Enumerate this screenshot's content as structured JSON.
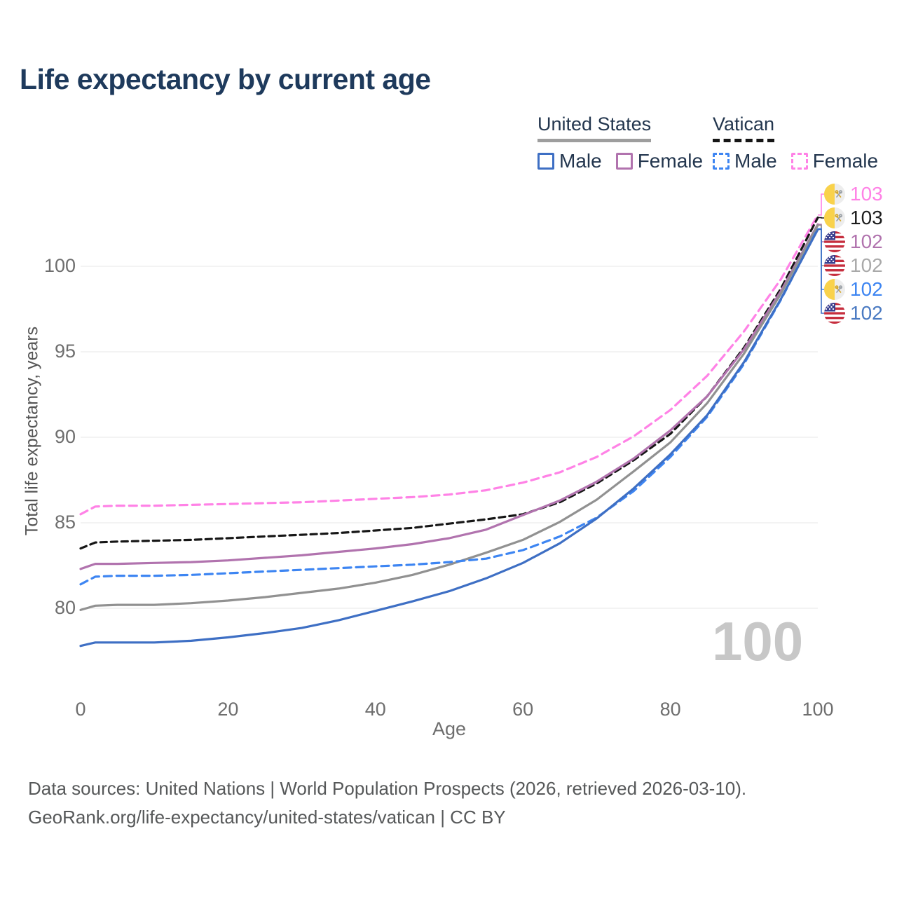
{
  "title": "Life expectancy by current age",
  "watermark": "100",
  "legend": {
    "groups": [
      {
        "name": "United States",
        "items": [
          {
            "label": "Male"
          },
          {
            "label": "Female"
          }
        ]
      },
      {
        "name": "Vatican",
        "items": [
          {
            "label": "Male"
          },
          {
            "label": "Female"
          }
        ]
      }
    ]
  },
  "footer": {
    "line1": "Data sources: United Nations | World Population Prospects (2026, retrieved 2026-03-10).",
    "line2": "GeoRank.org/life-expectancy/united-states/vatican | CC BY"
  },
  "colors": {
    "us_male": "#3e6fc4",
    "us_female": "#b173ae",
    "us_total": "#919191",
    "vatican_male": "#3d85f2",
    "vatican_total": "#161616",
    "vatican_female": "#ff82e6",
    "title_navy": "#1e3a5c",
    "gridline": "#ececec",
    "us_header_underline": "#9e9e9e",
    "vatican_header_underline": "#161616"
  },
  "chart_data": {
    "type": "line",
    "title": "Life expectancy by current age",
    "xlabel": "Age",
    "ylabel": "Total life expectancy, years",
    "xlim": [
      0,
      100
    ],
    "ylim": [
      76,
      104
    ],
    "x_ticks": [
      0,
      20,
      40,
      60,
      80,
      100
    ],
    "y_ticks": [
      80,
      85,
      90,
      95,
      100
    ],
    "grid": "horizontal-only",
    "legend_position": "top-right",
    "ages": [
      0,
      2,
      5,
      10,
      15,
      20,
      25,
      30,
      35,
      40,
      45,
      50,
      55,
      60,
      65,
      70,
      75,
      80,
      85,
      90,
      95,
      100
    ],
    "series": [
      {
        "id": "vatican-female",
        "name": "Vatican Female",
        "country": "Vatican",
        "sex": "Female",
        "color": "#ff82e6",
        "dashed": true,
        "end_label": "103",
        "end_label_color": "#ff82e6",
        "flag": "vatican",
        "values": [
          85.5,
          85.95,
          86.0,
          86.0,
          86.05,
          86.1,
          86.15,
          86.2,
          86.3,
          86.4,
          86.5,
          86.65,
          86.9,
          87.35,
          87.95,
          88.85,
          90.05,
          91.6,
          93.6,
          96.2,
          99.25,
          103.0
        ]
      },
      {
        "id": "vatican-total",
        "name": "Vatican",
        "country": "Vatican",
        "sex": "Both",
        "color": "#161616",
        "dashed": true,
        "end_label": "103",
        "end_label_color": "#1c1c1c",
        "flag": "vatican",
        "values": [
          83.5,
          83.85,
          83.9,
          83.95,
          84.0,
          84.1,
          84.2,
          84.3,
          84.4,
          84.55,
          84.7,
          84.95,
          85.2,
          85.5,
          86.2,
          87.3,
          88.65,
          90.2,
          92.4,
          95.25,
          98.7,
          102.85
        ]
      },
      {
        "id": "us-female",
        "name": "United States Female",
        "country": "United States",
        "sex": "Female",
        "color": "#b173ae",
        "dashed": false,
        "end_label": "102",
        "end_label_color": "#b173ae",
        "flag": "us",
        "values": [
          82.3,
          82.6,
          82.6,
          82.65,
          82.7,
          82.8,
          82.95,
          83.1,
          83.3,
          83.5,
          83.75,
          84.1,
          84.6,
          85.45,
          86.3,
          87.4,
          88.75,
          90.4,
          92.4,
          95.15,
          98.55,
          102.45
        ]
      },
      {
        "id": "us-total",
        "name": "United States",
        "country": "United States",
        "sex": "Both",
        "color": "#919191",
        "dashed": false,
        "end_label": "102",
        "end_label_color": "#a9a9a9",
        "flag": "us",
        "values": [
          79.9,
          80.15,
          80.2,
          80.2,
          80.3,
          80.45,
          80.65,
          80.9,
          81.15,
          81.5,
          81.95,
          82.55,
          83.25,
          84.0,
          85.05,
          86.35,
          88.0,
          89.7,
          92.0,
          94.9,
          98.4,
          102.4
        ]
      },
      {
        "id": "vatican-male",
        "name": "Vatican Male",
        "country": "Vatican",
        "sex": "Male",
        "color": "#3d85f2",
        "dashed": true,
        "end_label": "102",
        "end_label_color": "#3d85f2",
        "flag": "vatican",
        "values": [
          81.4,
          81.85,
          81.9,
          81.9,
          81.95,
          82.05,
          82.15,
          82.25,
          82.35,
          82.45,
          82.55,
          82.7,
          82.9,
          83.4,
          84.2,
          85.3,
          86.85,
          88.85,
          91.2,
          94.3,
          98.05,
          102.2
        ]
      },
      {
        "id": "us-male",
        "name": "United States Male",
        "country": "United States",
        "sex": "Male",
        "color": "#3e6fc4",
        "dashed": false,
        "end_label": "102",
        "end_label_color": "#4a7ac2",
        "flag": "us",
        "values": [
          77.8,
          78.0,
          78.0,
          78.0,
          78.1,
          78.3,
          78.55,
          78.85,
          79.3,
          79.85,
          80.4,
          81.0,
          81.75,
          82.65,
          83.8,
          85.25,
          87.0,
          89.0,
          91.3,
          94.4,
          98.1,
          102.15
        ]
      }
    ]
  }
}
